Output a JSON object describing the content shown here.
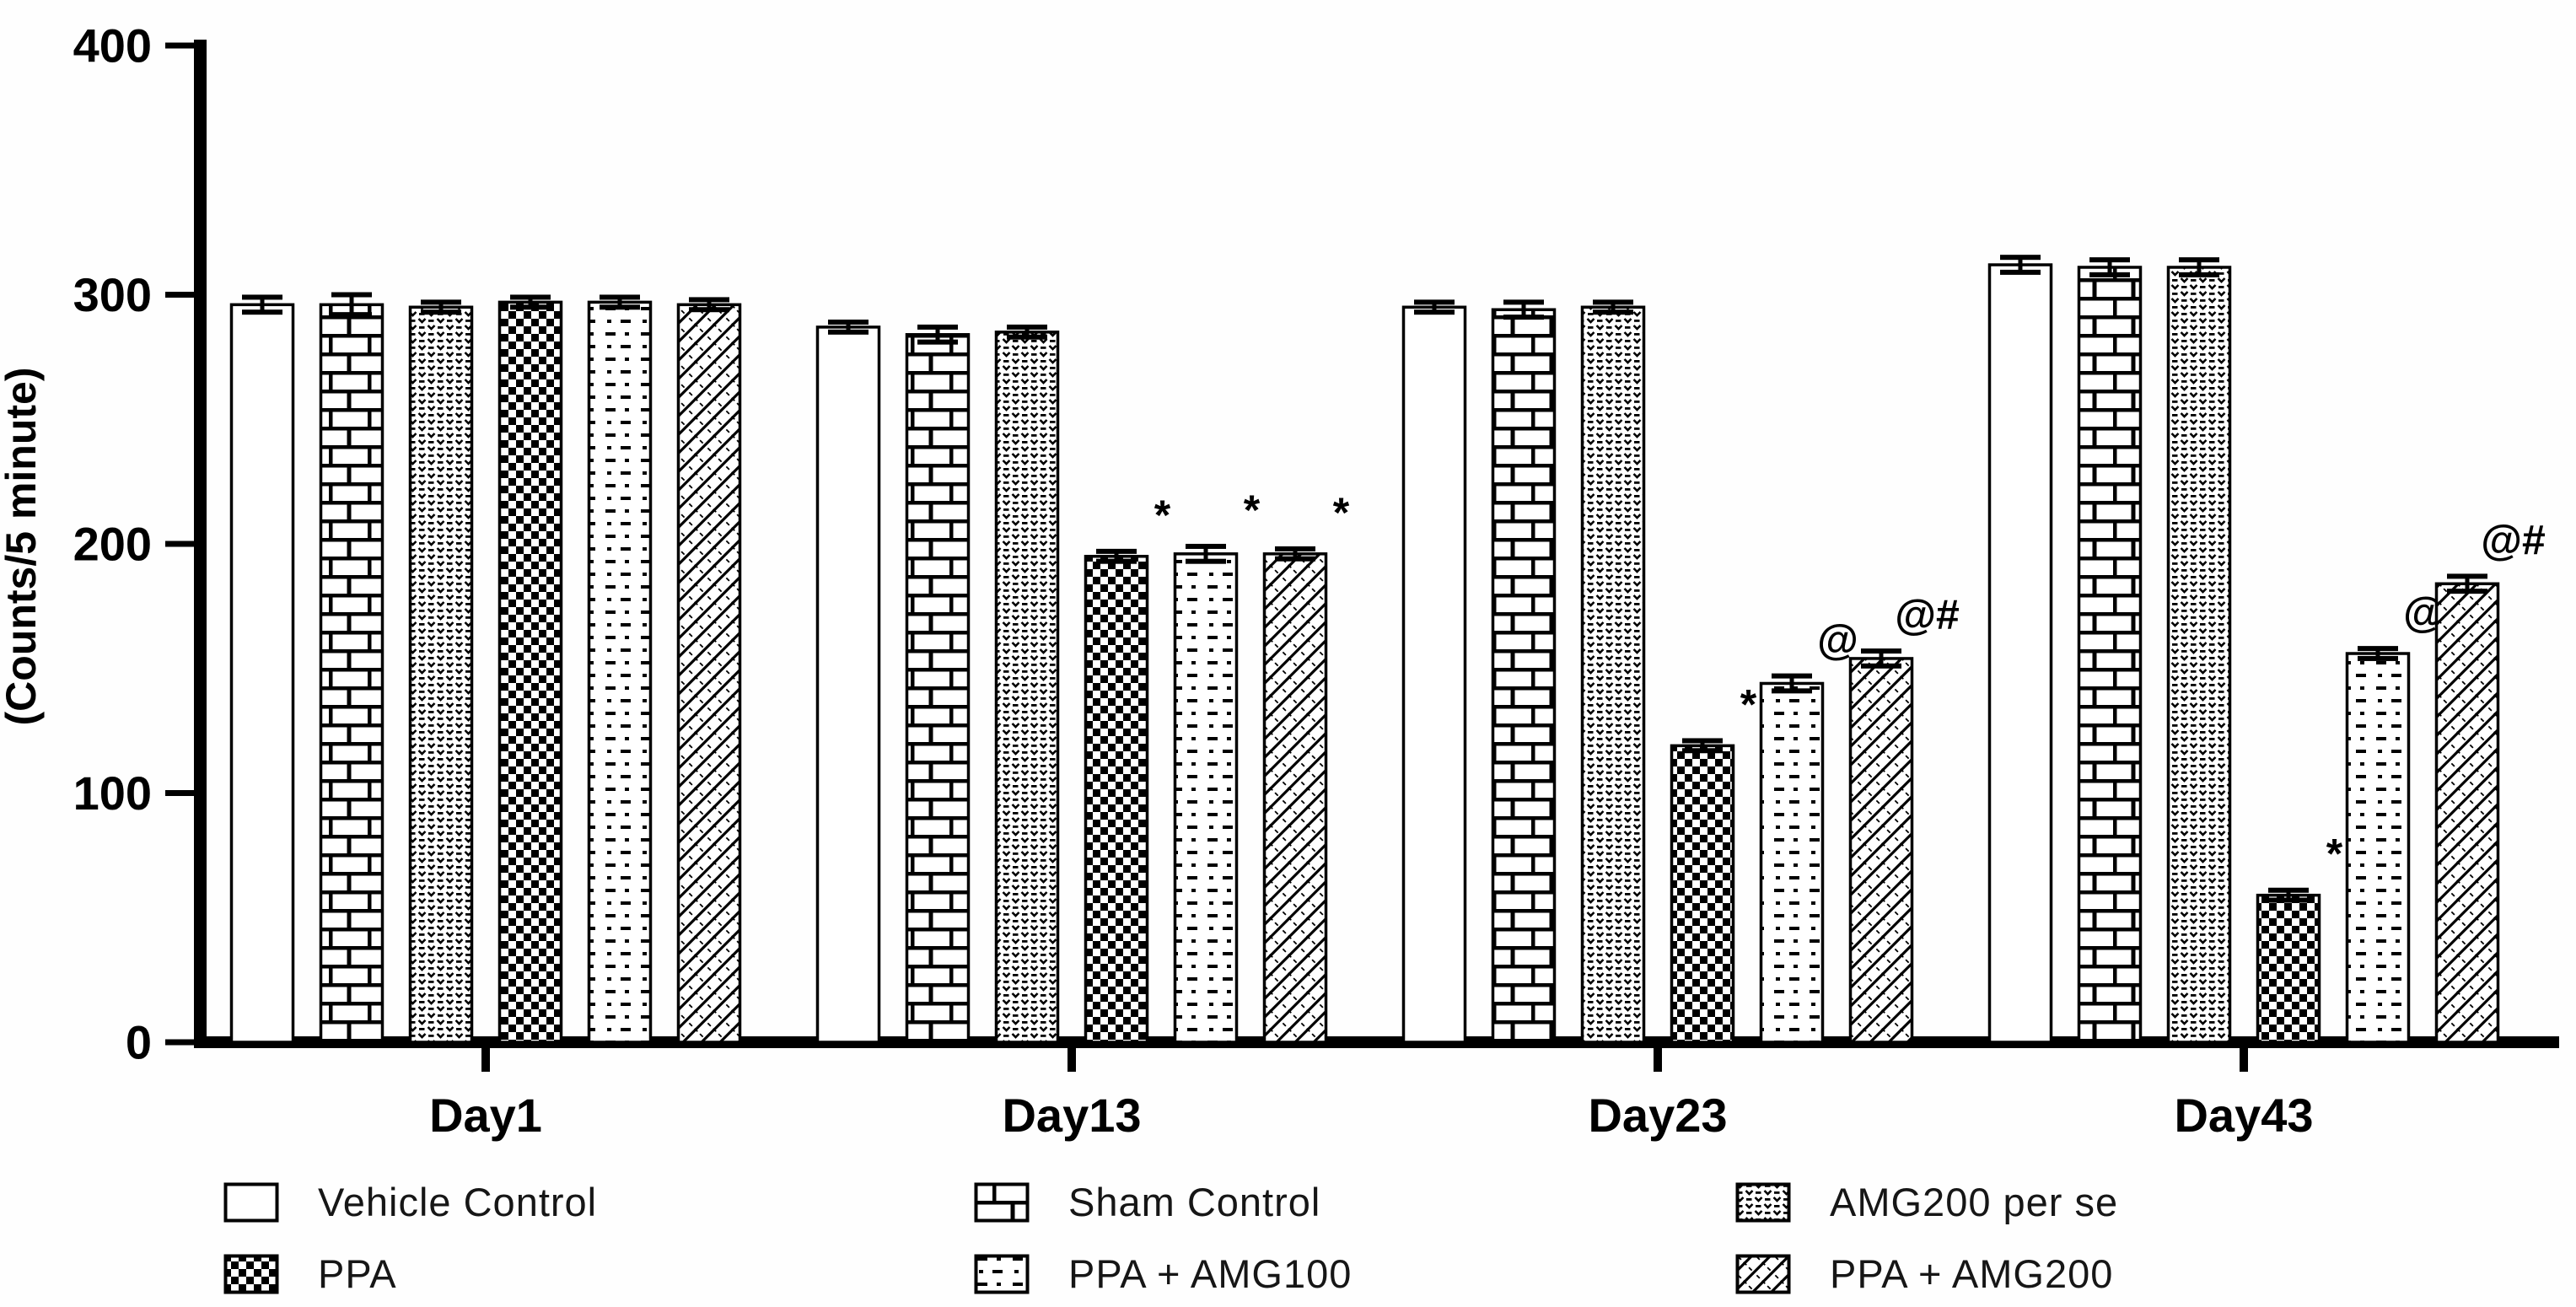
{
  "figure": {
    "type_label": "grouped bar chart",
    "background": "#fefefe",
    "ink_color": "#000000",
    "text_color": "#161616"
  },
  "chart_data": {
    "type": "bar",
    "title": "",
    "xlabel": "",
    "ylabel": "(Counts/5 minute)",
    "ylim": [
      0,
      400
    ],
    "yticks": [
      0,
      100,
      200,
      300,
      400
    ],
    "grid": false,
    "legend_position": "bottom",
    "categories": [
      "Day1",
      "Day13",
      "Day23",
      "Day43"
    ],
    "series": [
      {
        "name": "Vehicle Control",
        "pattern": "plain",
        "values": [
          296,
          287,
          295,
          312
        ],
        "errors": [
          3,
          2,
          2,
          3
        ],
        "annotations": [
          "",
          "",
          "",
          ""
        ]
      },
      {
        "name": "Sham Control",
        "pattern": "brick",
        "values": [
          296,
          284,
          294,
          311
        ],
        "errors": [
          4,
          3,
          3,
          3
        ],
        "annotations": [
          "",
          "",
          "",
          ""
        ]
      },
      {
        "name": "AMG200 per se",
        "pattern": "scales",
        "values": [
          295,
          285,
          295,
          311
        ],
        "errors": [
          2,
          2,
          2,
          3
        ],
        "annotations": [
          "",
          "",
          "",
          ""
        ]
      },
      {
        "name": "PPA",
        "pattern": "checker",
        "values": [
          297,
          195,
          119,
          59
        ],
        "errors": [
          2,
          2,
          2,
          2
        ],
        "annotations": [
          "",
          "*",
          "*",
          "*"
        ]
      },
      {
        "name": "PPA + AMG100",
        "pattern": "dots",
        "values": [
          297,
          196,
          144,
          156
        ],
        "errors": [
          2,
          3,
          3,
          2
        ],
        "annotations": [
          "",
          "*",
          "@",
          "@"
        ]
      },
      {
        "name": "PPA + AMG200",
        "pattern": "diagonal",
        "values": [
          296,
          196,
          154,
          184
        ],
        "errors": [
          2,
          2,
          3,
          3
        ],
        "annotations": [
          "",
          "*",
          "@#",
          "@#"
        ]
      }
    ],
    "legend_column_order": [
      [
        0,
        3
      ],
      [
        1,
        4
      ],
      [
        2,
        5
      ]
    ]
  }
}
